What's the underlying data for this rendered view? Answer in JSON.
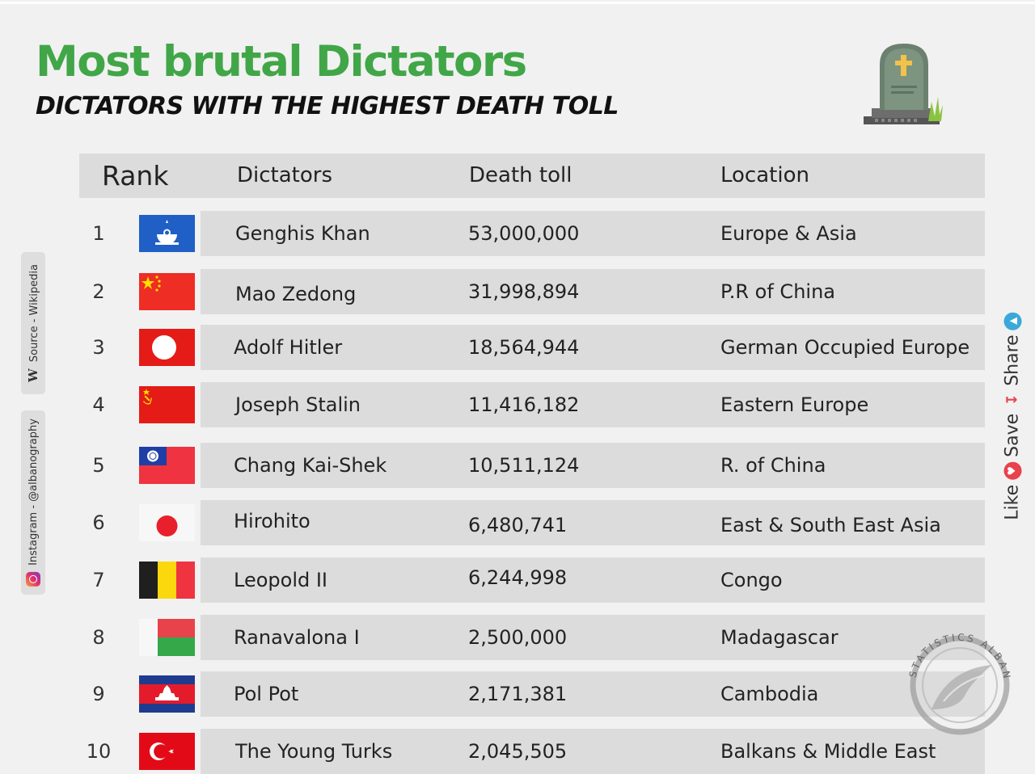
{
  "title": "Most brutal Dictators",
  "subtitle": "DICTATORS WITH THE HIGHEST DEATH TOLL",
  "header": {
    "rank": "Rank",
    "dictators": "Dictators",
    "death_toll": "Death toll",
    "location": "Location"
  },
  "rows": [
    {
      "rank": "1",
      "flag": "mongolia",
      "name": "Genghis Khan",
      "death_toll": "53,000,000",
      "location": "Europe & Asia"
    },
    {
      "rank": "2",
      "flag": "china",
      "name": "Mao Zedong",
      "death_toll": "31,998,894",
      "location": "P.R of China"
    },
    {
      "rank": "3",
      "flag": "nazi-germany",
      "name": "Adolf Hitler",
      "death_toll": "18,564,944",
      "location": "German Occupied Europe"
    },
    {
      "rank": "4",
      "flag": "ussr",
      "name": "Joseph Stalin",
      "death_toll": "11,416,182",
      "location": "Eastern Europe"
    },
    {
      "rank": "5",
      "flag": "taiwan",
      "name": "Chang Kai-Shek",
      "death_toll": "10,511,124",
      "location": "R. of China"
    },
    {
      "rank": "6",
      "flag": "japan",
      "name": "Hirohito",
      "death_toll": "6,480,741",
      "location": "East & South East Asia"
    },
    {
      "rank": "7",
      "flag": "belgium",
      "name": "Leopold II",
      "death_toll": "6,244,998",
      "location": "Congo"
    },
    {
      "rank": "8",
      "flag": "madagascar",
      "name": "Ranavalona I",
      "death_toll": "2,500,000",
      "location": "Madagascar"
    },
    {
      "rank": "9",
      "flag": "cambodia",
      "name": "Pol Pot",
      "death_toll": "2,171,381",
      "location": "Cambodia"
    },
    {
      "rank": "10",
      "flag": "turkey",
      "name": "The Young Turks",
      "death_toll": "2,045,505",
      "location": "Balkans & Middle East"
    }
  ],
  "sidebar_left": {
    "source": "Source - Wikipedia",
    "source_letter": "W",
    "instagram": "Instagram - @albanography"
  },
  "sidebar_right": {
    "like": "Like",
    "save": "Save",
    "share": "Share"
  },
  "watermark": {
    "text": "STATISTICS ALBANOGRAPHY MAPS"
  },
  "colors": {
    "title_green": "#41a647",
    "row_bg": "#dcdcdc",
    "page_bg": "#f1f1f1"
  },
  "icons": {
    "tombstone": "tombstone-icon",
    "instagram": "instagram-icon",
    "wikipedia": "wikipedia-icon",
    "like": "heart-icon",
    "save": "save-icon",
    "share": "share-icon"
  }
}
